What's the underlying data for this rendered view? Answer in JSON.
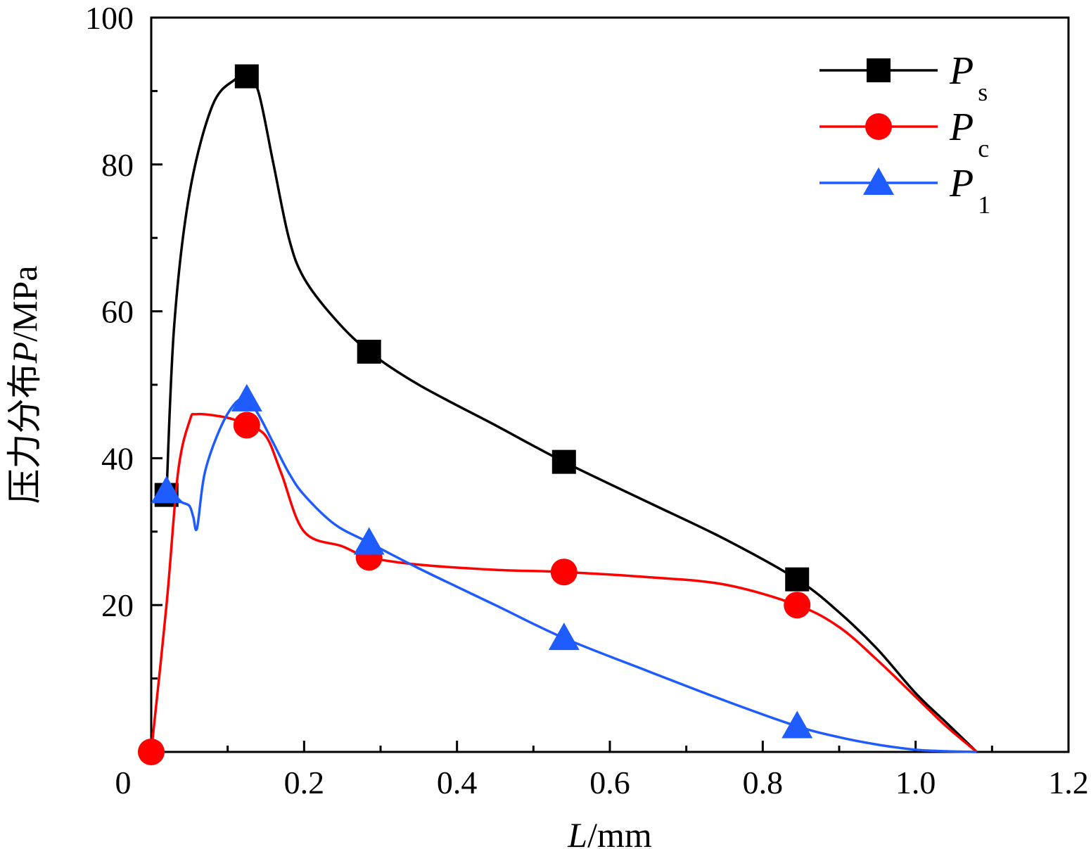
{
  "chart_data": {
    "type": "line",
    "xlabel": {
      "var": "L",
      "unit": "/mm"
    },
    "ylabel": {
      "prefix": "压力分布",
      "var": "P",
      "unit": "/MPa"
    },
    "xlim": [
      0,
      1.2
    ],
    "ylim": [
      0,
      100
    ],
    "xticks": [
      "0",
      "0.2",
      "0.4",
      "0.6",
      "0.8",
      "1.0",
      "1.2"
    ],
    "yticks": [
      "20",
      "40",
      "60",
      "80",
      "100"
    ],
    "legend_position": "top-right",
    "series": [
      {
        "name": "Ps",
        "label": "P",
        "subscript": "s",
        "color": "#000000",
        "marker": "square",
        "markers": {
          "x": [
            0.02,
            0.125,
            0.285,
            0.54,
            0.845
          ],
          "y": [
            35,
            92,
            54.5,
            39.5,
            23.5
          ]
        },
        "curve": {
          "x": [
            0.02,
            0.03,
            0.05,
            0.08,
            0.11,
            0.125,
            0.14,
            0.16,
            0.18,
            0.2,
            0.24,
            0.285,
            0.35,
            0.45,
            0.54,
            0.65,
            0.75,
            0.845,
            0.9,
            0.95,
            1.0,
            1.04,
            1.08
          ],
          "y": [
            35,
            58,
            76,
            88,
            91.6,
            92,
            90,
            80,
            70,
            64.5,
            59,
            54.5,
            50,
            44.5,
            39.5,
            34,
            29,
            23.5,
            19,
            14,
            8,
            4,
            0
          ]
        }
      },
      {
        "name": "Pc",
        "label": "P",
        "subscript": "c",
        "color": "#ff0000",
        "marker": "circle",
        "markers": {
          "x": [
            0.0,
            0.125,
            0.285,
            0.54,
            0.845
          ],
          "y": [
            0,
            44.5,
            26.5,
            24.5,
            20
          ]
        },
        "curve": {
          "x": [
            0.0,
            0.02,
            0.035,
            0.05,
            0.06,
            0.1,
            0.125,
            0.15,
            0.17,
            0.2,
            0.25,
            0.285,
            0.35,
            0.45,
            0.54,
            0.65,
            0.75,
            0.845,
            0.9,
            0.95,
            1.0,
            1.04,
            1.08
          ],
          "y": [
            0,
            20,
            38,
            45,
            46,
            45.5,
            44.5,
            43,
            38,
            30,
            28,
            26.5,
            25.5,
            24.8,
            24.5,
            23.8,
            22.8,
            20,
            17,
            12.5,
            7.5,
            3.5,
            0
          ]
        }
      },
      {
        "name": "P1",
        "label": "P",
        "subscript": "1",
        "color": "#1f5cff",
        "marker": "triangle",
        "markers": {
          "x": [
            0.02,
            0.125,
            0.285,
            0.54,
            0.845
          ],
          "y": [
            35.5,
            48,
            28.5,
            15.5,
            3.5
          ]
        },
        "curve": {
          "x": [
            0.02,
            0.03,
            0.04,
            0.05,
            0.055,
            0.06,
            0.07,
            0.09,
            0.11,
            0.125,
            0.14,
            0.16,
            0.18,
            0.2,
            0.24,
            0.285,
            0.35,
            0.45,
            0.54,
            0.65,
            0.75,
            0.845,
            0.9,
            0.95,
            1.0,
            1.04,
            1.08
          ],
          "y": [
            35.5,
            35,
            34,
            33.5,
            32,
            30.5,
            38,
            44,
            47.5,
            48,
            46,
            42,
            38,
            35,
            31,
            28.5,
            25,
            20,
            15.5,
            11,
            7,
            3.5,
            2,
            1,
            0.3,
            0.1,
            0
          ]
        }
      }
    ]
  }
}
